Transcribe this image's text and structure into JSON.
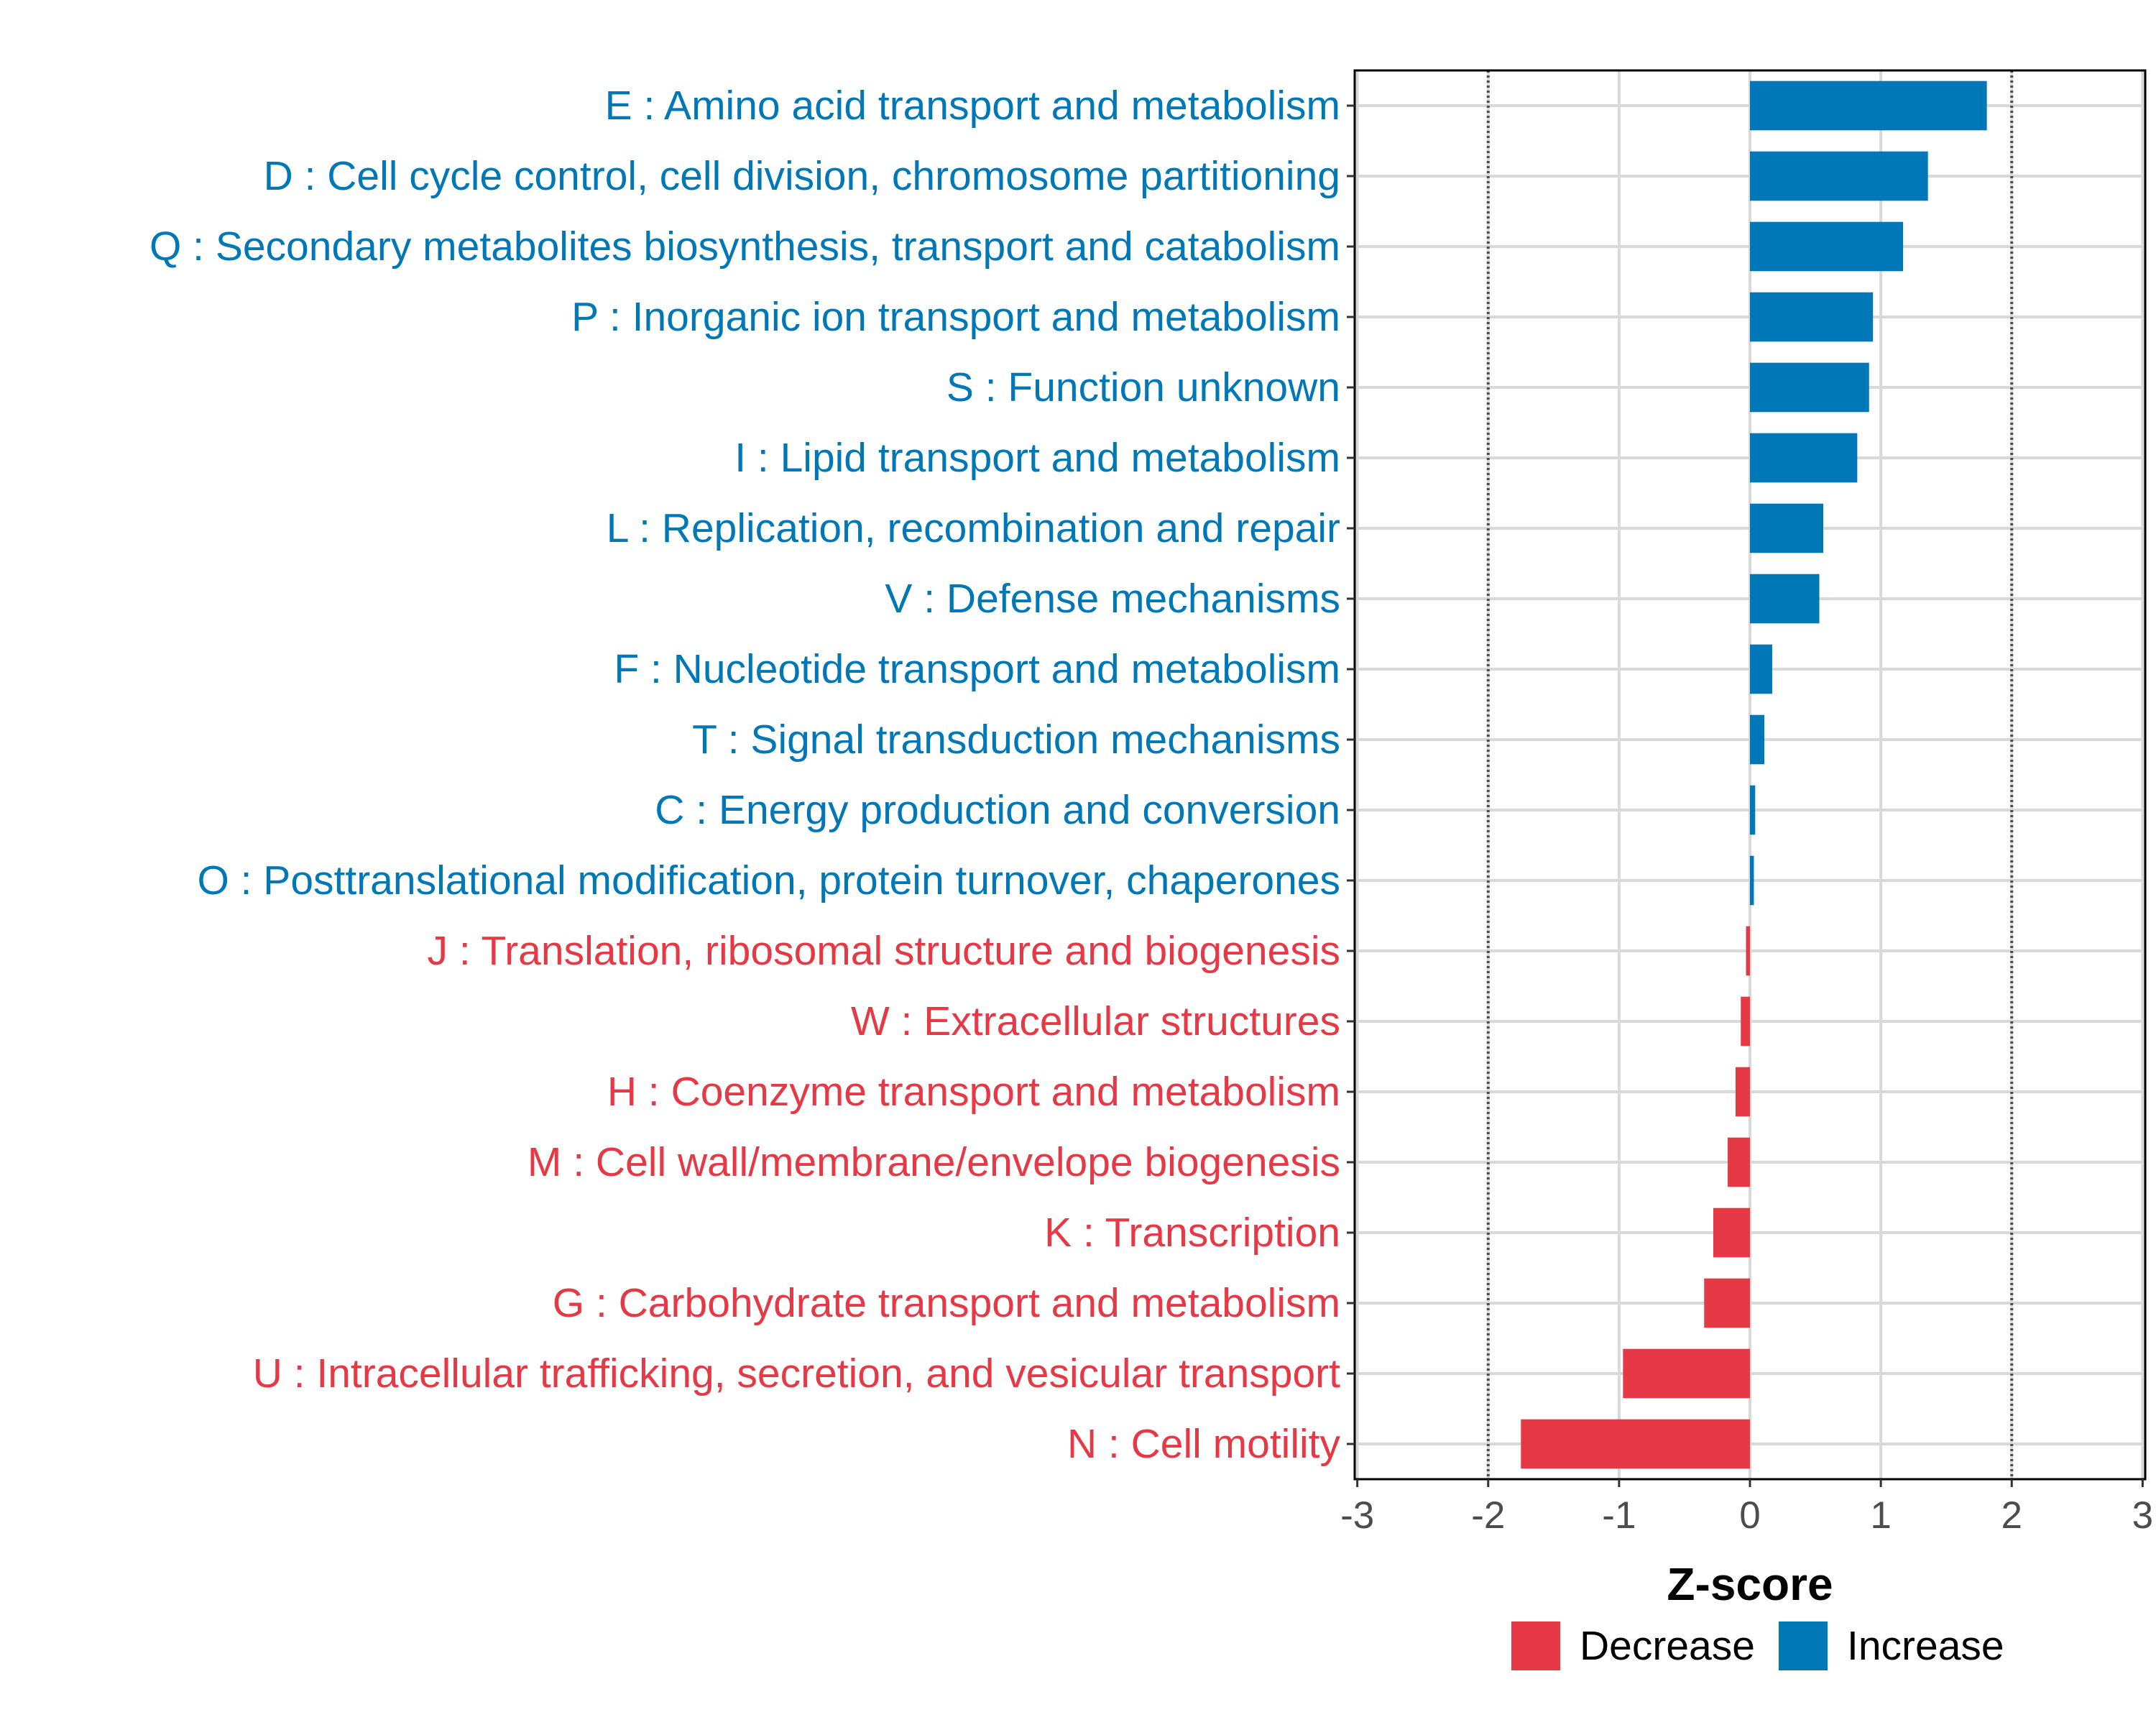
{
  "chart_data": {
    "type": "bar",
    "orientation": "horizontal",
    "xlabel": "Z-score",
    "xlim": [
      -3,
      3
    ],
    "xticks": [
      -3,
      -2,
      -1,
      0,
      1,
      2,
      3
    ],
    "xtick_labels": [
      "-3",
      "-2",
      "-1",
      "0",
      "1",
      "2",
      "3"
    ],
    "reference_lines": [
      -2,
      2
    ],
    "grid": true,
    "legend_position": "bottom",
    "colors": {
      "Decrease": "#e63946",
      "Increase": "#0077b6"
    },
    "legend": [
      {
        "name": "Decrease",
        "color": "#e63946"
      },
      {
        "name": "Increase",
        "color": "#0077b6"
      }
    ],
    "categories": [
      "E : Amino acid transport and metabolism",
      "D : Cell cycle control, cell division, chromosome partitioning",
      "Q : Secondary metabolites biosynthesis, transport and catabolism",
      "P : Inorganic ion transport and metabolism",
      "S : Function unknown",
      "I : Lipid transport and metabolism",
      "L : Replication, recombination and repair",
      "V : Defense mechanisms",
      "F : Nucleotide transport and metabolism",
      "T : Signal transduction mechanisms",
      "C : Energy production and conversion",
      "O : Posttranslational modification, protein turnover, chaperones",
      "J : Translation, ribosomal structure and biogenesis",
      "W : Extracellular structures",
      "H : Coenzyme transport and metabolism",
      "M : Cell wall/membrane/envelope biogenesis",
      "K : Transcription",
      "G : Carbohydrate transport and metabolism",
      "U : Intracellular trafficking, secretion, and vesicular transport",
      "N : Cell motility"
    ],
    "values": [
      1.81,
      1.36,
      1.17,
      0.94,
      0.91,
      0.82,
      0.56,
      0.53,
      0.17,
      0.11,
      0.04,
      0.03,
      -0.03,
      -0.07,
      -0.11,
      -0.17,
      -0.28,
      -0.35,
      -0.97,
      -1.75
    ],
    "groups": [
      "Increase",
      "Increase",
      "Increase",
      "Increase",
      "Increase",
      "Increase",
      "Increase",
      "Increase",
      "Increase",
      "Increase",
      "Increase",
      "Increase",
      "Decrease",
      "Decrease",
      "Decrease",
      "Decrease",
      "Decrease",
      "Decrease",
      "Decrease",
      "Decrease"
    ]
  }
}
